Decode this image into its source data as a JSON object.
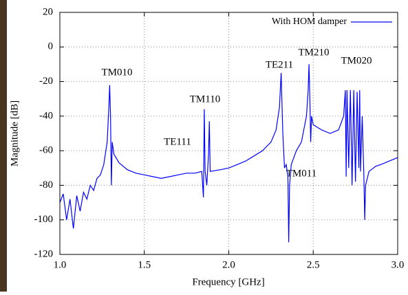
{
  "chart_data": {
    "type": "line",
    "x_label": "Frequency [GHz]",
    "y_label": "Magnitude [dB]",
    "xlim": [
      1.0,
      3.0
    ],
    "ylim": [
      -120,
      20
    ],
    "xticks": [
      {
        "value": 1,
        "label": "1.0"
      },
      1.5,
      {
        "value": 2,
        "label": "2.0"
      },
      2.5,
      {
        "value": 3,
        "label": "3.0"
      }
    ],
    "yticks": [
      20,
      0,
      -20,
      -40,
      -60,
      -80,
      -100,
      -120
    ],
    "grid": true,
    "legend": "top-right",
    "annotations": [
      "TM010",
      "TE111",
      "TM110",
      "TE211",
      "TM011",
      "TM210",
      "TM020"
    ],
    "series": [
      {
        "name": "With HOM damper",
        "color": "#0000ff",
        "x": [
          1.0,
          1.02,
          1.04,
          1.06,
          1.08,
          1.1,
          1.12,
          1.14,
          1.16,
          1.18,
          1.2,
          1.22,
          1.24,
          1.26,
          1.28,
          1.29,
          1.295,
          1.3,
          1.305,
          1.31,
          1.32,
          1.35,
          1.4,
          1.45,
          1.5,
          1.55,
          1.6,
          1.65,
          1.7,
          1.75,
          1.8,
          1.84,
          1.85,
          1.855,
          1.86,
          1.87,
          1.88,
          1.885,
          1.89,
          1.95,
          2.0,
          2.05,
          2.1,
          2.15,
          2.2,
          2.25,
          2.28,
          2.3,
          2.31,
          2.32,
          2.33,
          2.34,
          2.35,
          2.355,
          2.36,
          2.37,
          2.4,
          2.43,
          2.46,
          2.47,
          2.475,
          2.48,
          2.485,
          2.49,
          2.5,
          2.55,
          2.6,
          2.65,
          2.68,
          2.69,
          2.695,
          2.7,
          2.71,
          2.72,
          2.73,
          2.74,
          2.75,
          2.76,
          2.77,
          2.775,
          2.78,
          2.79,
          2.8,
          2.805,
          2.81,
          2.83,
          2.87,
          2.9,
          2.95,
          3.0
        ],
        "values": [
          -90,
          -85,
          -100,
          -88,
          -105,
          -86,
          -95,
          -84,
          -88,
          -80,
          -83,
          -76,
          -74,
          -68,
          -55,
          -35,
          -22,
          -40,
          -80,
          -55,
          -62,
          -67,
          -71,
          -73,
          -74,
          -75,
          -76,
          -75,
          -74,
          -73,
          -73,
          -72,
          -87,
          -36,
          -72,
          -80,
          -62,
          -43,
          -72,
          -71,
          -70,
          -68,
          -66,
          -63,
          -60,
          -55,
          -48,
          -35,
          -15,
          -50,
          -70,
          -68,
          -75,
          -113,
          -80,
          -68,
          -60,
          -55,
          -40,
          -25,
          -10,
          -30,
          -55,
          -40,
          -45,
          -48,
          -50,
          -48,
          -40,
          -25,
          -75,
          -25,
          -70,
          -25,
          -80,
          -25,
          -78,
          -26,
          -70,
          -25,
          -72,
          -40,
          -75,
          -100,
          -80,
          -72,
          -69,
          -68,
          -66,
          -64
        ]
      }
    ]
  }
}
